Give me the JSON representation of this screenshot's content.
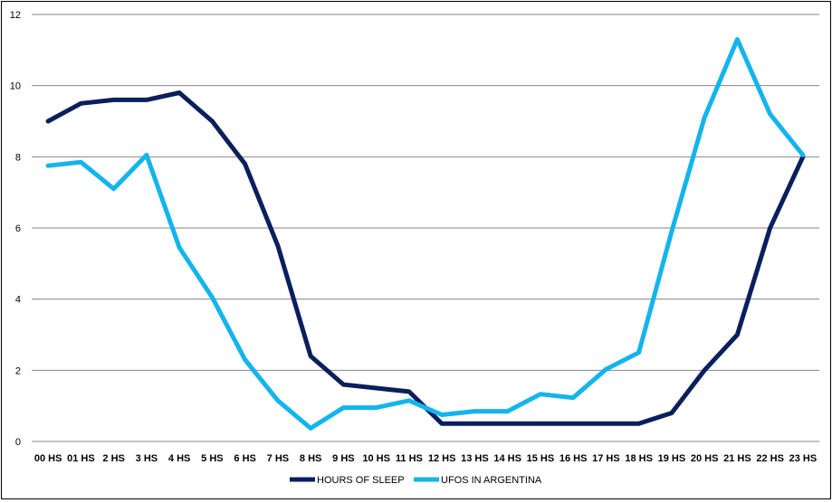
{
  "chart_data": {
    "type": "line",
    "title": "",
    "xlabel": "",
    "ylabel": "",
    "categories": [
      "00 HS",
      "01 HS",
      "2 HS",
      "3 HS",
      "4 HS",
      "5 HS",
      "6 HS",
      "7 HS",
      "8 HS",
      "9 HS",
      "10 HS",
      "11 HS",
      "12 HS",
      "13 HS",
      "14 HS",
      "15 HS",
      "16 HS",
      "17 HS",
      "18 HS",
      "19 HS",
      "20 HS",
      "21 HS",
      "22 HS",
      "23 HS"
    ],
    "ylim": [
      0,
      12
    ],
    "yticks": [
      "0",
      "2",
      "4",
      "6",
      "8",
      "10",
      "12"
    ],
    "grid": true,
    "legend_position": "bottom",
    "series": [
      {
        "name": "HOURS OF SLEEP",
        "color": "#0a1f5c",
        "values": [
          9.0,
          9.5,
          9.6,
          9.6,
          9.8,
          9.0,
          7.8,
          5.5,
          2.4,
          1.6,
          1.5,
          1.4,
          0.5,
          0.5,
          0.5,
          0.5,
          0.5,
          0.5,
          0.5,
          0.8,
          2.0,
          3.0,
          6.0,
          8.0
        ]
      },
      {
        "name": "UFOS IN ARGENTINA",
        "color": "#14b4ec",
        "values": [
          7.75,
          7.85,
          7.1,
          8.05,
          5.45,
          4.05,
          2.3,
          1.15,
          0.37,
          0.95,
          0.95,
          1.15,
          0.75,
          0.85,
          0.85,
          1.33,
          1.23,
          2.03,
          2.5,
          5.9,
          9.1,
          11.3,
          9.2,
          8.05
        ]
      }
    ]
  }
}
